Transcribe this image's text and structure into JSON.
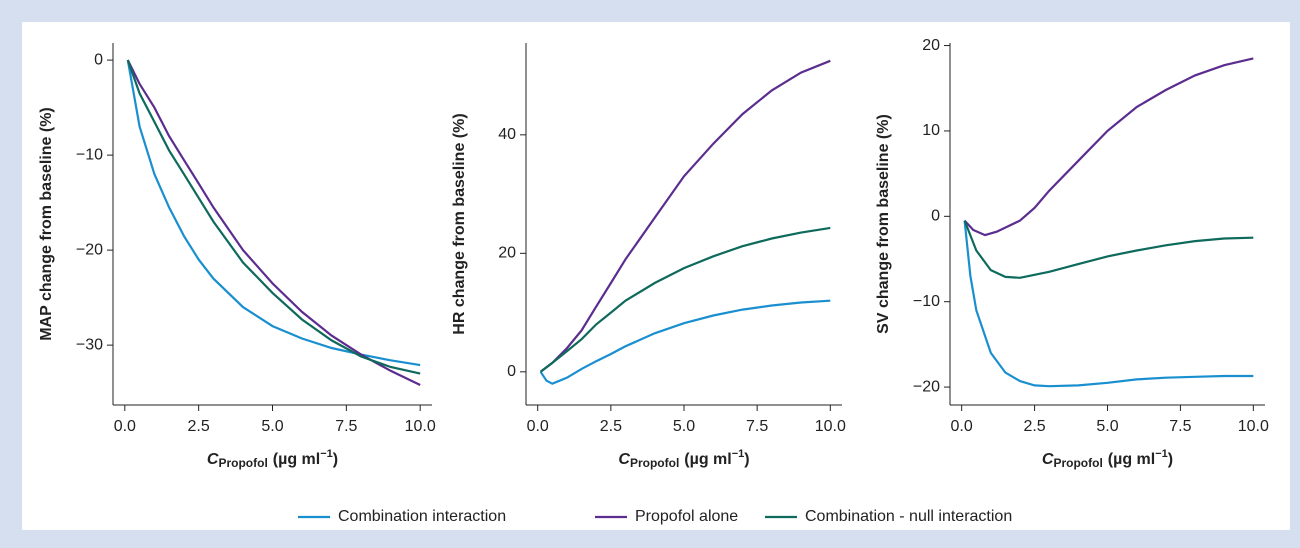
{
  "chart_data": [
    {
      "type": "line",
      "ylabel": "MAP change from baseline (%)",
      "xlabel": [
        "C",
        "Propofol",
        "(µg ml",
        "−1",
        ")"
      ],
      "xlim": [
        -0.4,
        10.4
      ],
      "ylim": [
        -36.3,
        1.8
      ],
      "xticks": [
        {
          "value": 0,
          "label": "0.0"
        },
        {
          "value": 2.5,
          "label": "2.5"
        },
        {
          "value": 5,
          "label": "5.0"
        },
        {
          "value": 7.5,
          "label": "7.5"
        },
        {
          "value": 10,
          "label": "10.0"
        }
      ],
      "yticks": [
        0,
        {
          "value": -10,
          "label": "−10"
        },
        {
          "value": -20,
          "label": "−20"
        },
        {
          "value": -30,
          "label": "−30"
        }
      ],
      "series": [
        {
          "name": "Combination interaction",
          "color": "#1a8fd0",
          "x": [
            0.1,
            0.5,
            1,
            1.5,
            2,
            2.5,
            3,
            4,
            5,
            6,
            7,
            8,
            9,
            10
          ],
          "values": [
            0,
            -7,
            -12,
            -15.5,
            -18.5,
            -21,
            -23,
            -26,
            -28,
            -29.3,
            -30.3,
            -31,
            -31.6,
            -32.1
          ]
        },
        {
          "name": "Propofol alone",
          "color": "#5b2d8e",
          "x": [
            0.1,
            0.5,
            1,
            1.5,
            2,
            2.5,
            3,
            4,
            5,
            6,
            7,
            8,
            9,
            10
          ],
          "values": [
            0,
            -2.5,
            -5,
            -8,
            -10.5,
            -13,
            -15.5,
            -20,
            -23.5,
            -26.5,
            -29,
            -31,
            -32.7,
            -34.2
          ]
        },
        {
          "name": "Combination - null interaction",
          "color": "#0e6a5c",
          "x": [
            0.1,
            0.5,
            1,
            1.5,
            2,
            2.5,
            3,
            4,
            5,
            6,
            7,
            8,
            9,
            10
          ],
          "values": [
            0,
            -3.5,
            -6.5,
            -9.5,
            -12,
            -14.5,
            -17,
            -21.3,
            -24.5,
            -27.3,
            -29.5,
            -31.2,
            -32.3,
            -33
          ]
        }
      ]
    },
    {
      "type": "line",
      "ylabel": "HR change from baseline (%)",
      "xlabel": [
        "C",
        "Propofol",
        "(µg ml",
        "−1",
        ")"
      ],
      "xlim": [
        -0.4,
        10.4
      ],
      "ylim": [
        -5.6,
        55.5
      ],
      "xticks": [
        {
          "value": 0,
          "label": "0.0"
        },
        {
          "value": 2.5,
          "label": "2.5"
        },
        {
          "value": 5,
          "label": "5.0"
        },
        {
          "value": 7.5,
          "label": "7.5"
        },
        {
          "value": 10,
          "label": "10.0"
        }
      ],
      "yticks": [
        0,
        20,
        40
      ],
      "series": [
        {
          "name": "Combination interaction",
          "color": "#1a8fd0",
          "x": [
            0.1,
            0.3,
            0.5,
            1,
            1.5,
            2,
            2.5,
            3,
            4,
            5,
            6,
            7,
            8,
            9,
            10
          ],
          "values": [
            0,
            -1.5,
            -2,
            -1,
            0.5,
            1.8,
            3,
            4.3,
            6.5,
            8.2,
            9.5,
            10.5,
            11.2,
            11.7,
            12
          ]
        },
        {
          "name": "Propofol alone",
          "color": "#5b2d8e",
          "x": [
            0.1,
            0.5,
            1,
            1.5,
            2,
            2.5,
            3,
            4,
            5,
            6,
            7,
            8,
            9,
            10
          ],
          "values": [
            0,
            1.5,
            4,
            7,
            11,
            15,
            19,
            26,
            33,
            38.5,
            43.5,
            47.5,
            50.5,
            52.5
          ]
        },
        {
          "name": "Combination - null interaction",
          "color": "#0e6a5c",
          "x": [
            0.1,
            0.5,
            1,
            1.5,
            2,
            2.5,
            3,
            4,
            5,
            6,
            7,
            8,
            9,
            10
          ],
          "values": [
            0,
            1.5,
            3.5,
            5.5,
            8,
            10,
            12,
            15,
            17.5,
            19.5,
            21.2,
            22.5,
            23.5,
            24.3
          ]
        }
      ]
    },
    {
      "type": "line",
      "ylabel": "SV change from baseline (%)",
      "xlabel": [
        "C",
        "Propofol",
        "(µg ml",
        "−1",
        ")"
      ],
      "xlim": [
        -0.4,
        10.4
      ],
      "ylim": [
        -22.1,
        20.3
      ],
      "xticks": [
        {
          "value": 0,
          "label": "0.0"
        },
        {
          "value": 2.5,
          "label": "2.5"
        },
        {
          "value": 5,
          "label": "5.0"
        },
        {
          "value": 7.5,
          "label": "7.5"
        },
        {
          "value": 10,
          "label": "10.0"
        }
      ],
      "yticks": [
        20,
        10,
        0,
        {
          "value": -10,
          "label": "−10"
        },
        {
          "value": -20,
          "label": "−20"
        }
      ],
      "series": [
        {
          "name": "Combination interaction",
          "color": "#1a8fd0",
          "x": [
            0.1,
            0.3,
            0.5,
            1,
            1.5,
            2,
            2.5,
            3,
            4,
            5,
            6,
            7,
            8,
            9,
            10
          ],
          "values": [
            -0.5,
            -7,
            -11,
            -16,
            -18.3,
            -19.3,
            -19.8,
            -19.9,
            -19.8,
            -19.5,
            -19.1,
            -18.9,
            -18.8,
            -18.7,
            -18.7
          ]
        },
        {
          "name": "Propofol alone",
          "color": "#5b2d8e",
          "x": [
            0.1,
            0.4,
            0.8,
            1.2,
            2,
            2.5,
            3,
            4,
            5,
            6,
            7,
            8,
            9,
            10
          ],
          "values": [
            -0.5,
            -1.6,
            -2.2,
            -1.8,
            -0.5,
            1,
            3,
            6.5,
            10,
            12.8,
            14.8,
            16.5,
            17.7,
            18.5
          ]
        },
        {
          "name": "Combination - null interaction",
          "color": "#0e6a5c",
          "x": [
            0.1,
            0.5,
            1,
            1.5,
            2,
            3,
            4,
            5,
            6,
            7,
            8,
            9,
            10
          ],
          "values": [
            -0.5,
            -4,
            -6.3,
            -7.1,
            -7.2,
            -6.5,
            -5.6,
            -4.7,
            -4,
            -3.4,
            -2.9,
            -2.6,
            -2.5
          ]
        }
      ]
    }
  ]
}
